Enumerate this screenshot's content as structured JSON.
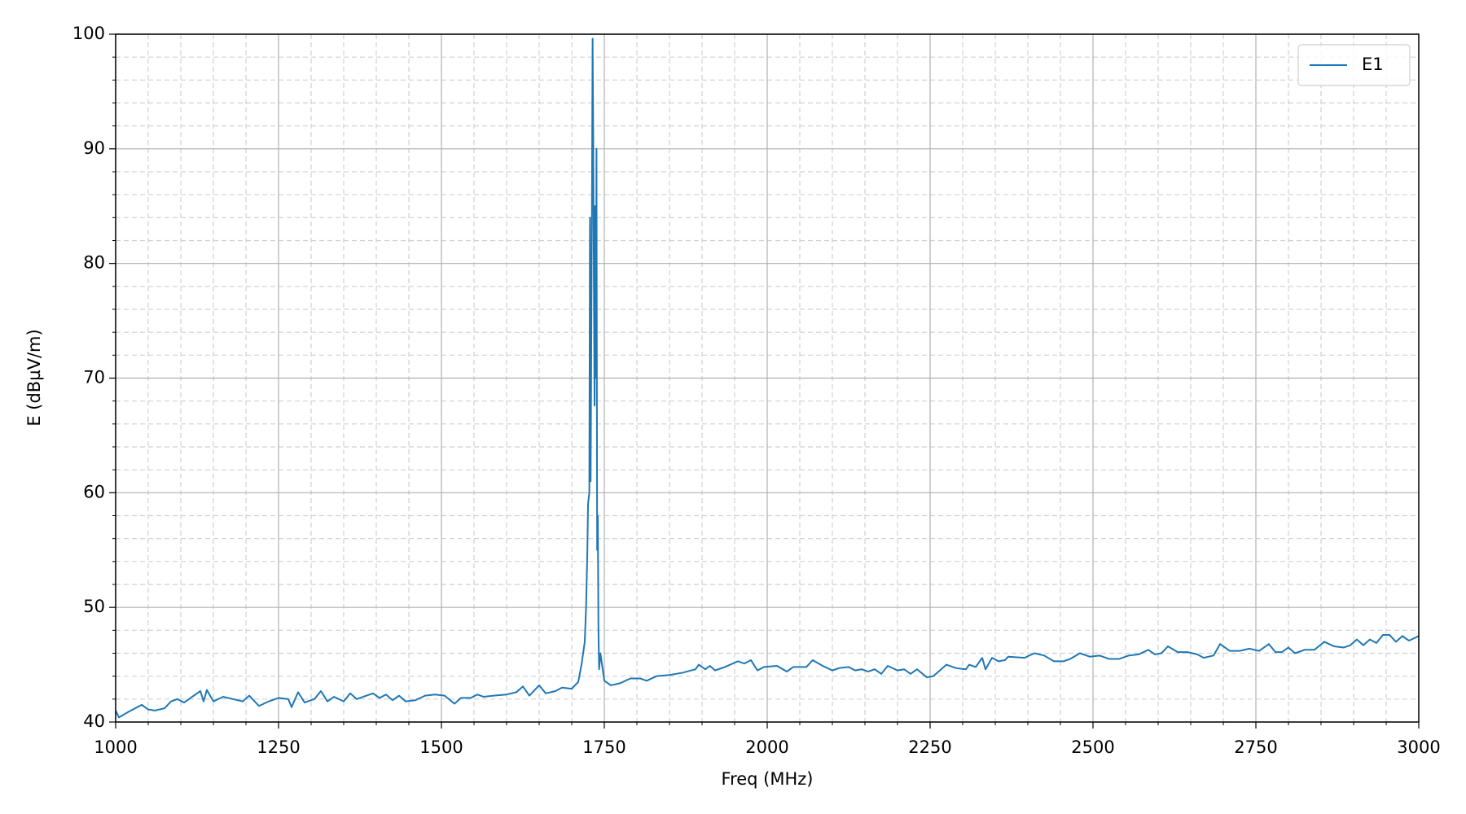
{
  "chart_data": {
    "type": "line",
    "xlabel": "Freq (MHz)",
    "ylabel": "E (dBµV/m)",
    "x": [
      1000,
      1005,
      1020,
      1040,
      1050,
      1060,
      1075,
      1085,
      1095,
      1105,
      1130,
      1135,
      1140,
      1150,
      1165,
      1180,
      1195,
      1205,
      1220,
      1235,
      1250,
      1265,
      1270,
      1280,
      1290,
      1305,
      1315,
      1325,
      1335,
      1350,
      1360,
      1370,
      1385,
      1395,
      1405,
      1415,
      1425,
      1435,
      1445,
      1460,
      1475,
      1490,
      1505,
      1520,
      1530,
      1545,
      1555,
      1565,
      1580,
      1600,
      1615,
      1625,
      1635,
      1650,
      1660,
      1675,
      1685,
      1700,
      1710,
      1715,
      1720,
      1722,
      1724,
      1725,
      1727,
      1728,
      1729,
      1730,
      1731,
      1732,
      1733,
      1734,
      1735,
      1736,
      1737,
      1738,
      1739,
      1740,
      1741,
      1742,
      1744,
      1750,
      1760,
      1775,
      1790,
      1805,
      1815,
      1830,
      1850,
      1870,
      1890,
      1895,
      1905,
      1912,
      1920,
      1935,
      1955,
      1965,
      1975,
      1985,
      1995,
      2015,
      2030,
      2040,
      2060,
      2070,
      2085,
      2100,
      2110,
      2125,
      2135,
      2145,
      2155,
      2165,
      2175,
      2185,
      2200,
      2210,
      2220,
      2230,
      2245,
      2255,
      2275,
      2290,
      2305,
      2310,
      2320,
      2330,
      2335,
      2345,
      2355,
      2365,
      2370,
      2395,
      2410,
      2425,
      2440,
      2455,
      2465,
      2480,
      2495,
      2510,
      2525,
      2540,
      2555,
      2570,
      2585,
      2595,
      2605,
      2615,
      2630,
      2645,
      2660,
      2670,
      2685,
      2695,
      2710,
      2725,
      2740,
      2755,
      2770,
      2780,
      2790,
      2800,
      2810,
      2825,
      2840,
      2855,
      2870,
      2885,
      2895,
      2905,
      2915,
      2925,
      2935,
      2945,
      2955,
      2965,
      2975,
      2985,
      3000
    ],
    "series": [
      {
        "name": "E1",
        "color": "#1f77b4",
        "values": [
          41.0,
          40.4,
          40.9,
          41.5,
          41.1,
          41.0,
          41.2,
          41.8,
          42.0,
          41.7,
          42.7,
          41.8,
          42.8,
          41.8,
          42.2,
          42.0,
          41.8,
          42.3,
          41.4,
          41.8,
          42.1,
          42.0,
          41.3,
          42.6,
          41.7,
          42.0,
          42.7,
          41.8,
          42.2,
          41.8,
          42.5,
          42.0,
          42.3,
          42.5,
          42.1,
          42.4,
          41.9,
          42.3,
          41.8,
          41.9,
          42.3,
          42.4,
          42.3,
          41.6,
          42.1,
          42.1,
          42.4,
          42.2,
          42.3,
          42.4,
          42.6,
          43.1,
          42.3,
          43.2,
          42.5,
          42.7,
          43.0,
          42.9,
          43.5,
          45,
          47,
          50,
          55,
          59,
          60,
          84,
          61,
          73,
          85,
          99.6,
          91,
          78,
          67.6,
          85,
          70,
          90,
          55,
          58,
          48,
          44.6,
          46,
          43.6,
          43.2,
          43.4,
          43.8,
          43.8,
          43.6,
          44.0,
          44.1,
          44.3,
          44.6,
          45.0,
          44.6,
          44.9,
          44.5,
          44.8,
          45.3,
          45.1,
          45.4,
          44.5,
          44.8,
          44.9,
          44.4,
          44.8,
          44.8,
          45.4,
          44.9,
          44.5,
          44.7,
          44.8,
          44.5,
          44.6,
          44.4,
          44.6,
          44.2,
          44.9,
          44.5,
          44.6,
          44.2,
          44.6,
          43.9,
          44.0,
          45.0,
          44.7,
          44.6,
          45.0,
          44.8,
          45.6,
          44.6,
          45.6,
          45.3,
          45.4,
          45.7,
          45.6,
          46.0,
          45.8,
          45.3,
          45.3,
          45.5,
          46.0,
          45.7,
          45.8,
          45.5,
          45.5,
          45.8,
          45.9,
          46.3,
          45.9,
          46.0,
          46.6,
          46.1,
          46.1,
          45.9,
          45.6,
          45.8,
          46.8,
          46.2,
          46.2,
          46.4,
          46.2,
          46.8,
          46.1,
          46.1,
          46.5,
          46.0,
          46.3,
          46.3,
          47.0,
          46.6,
          46.5,
          46.7,
          47.2,
          46.7,
          47.2,
          46.9,
          47.6,
          47.6,
          47.0,
          47.5,
          47.1,
          47.5
        ]
      }
    ],
    "xlim": [
      1000,
      3000
    ],
    "ylim": [
      40,
      100
    ],
    "xticks": [
      1000,
      1250,
      1500,
      1750,
      2000,
      2250,
      2500,
      2750,
      3000
    ],
    "yticks": [
      40,
      50,
      60,
      70,
      80,
      90,
      100
    ],
    "xticks_minor": [
      1050,
      1100,
      1150,
      1200,
      1300,
      1350,
      1400,
      1450,
      1550,
      1600,
      1650,
      1700,
      1800,
      1850,
      1900,
      1950,
      2050,
      2100,
      2150,
      2200,
      2300,
      2350,
      2400,
      2450,
      2550,
      2600,
      2650,
      2700,
      2800,
      2850,
      2900,
      2950
    ],
    "yticks_minor": [
      42,
      44,
      46,
      48,
      52,
      54,
      56,
      58,
      62,
      64,
      66,
      68,
      72,
      74,
      76,
      78,
      82,
      84,
      86,
      88,
      92,
      94,
      96,
      98
    ],
    "grid": true,
    "legend": "upper right"
  }
}
